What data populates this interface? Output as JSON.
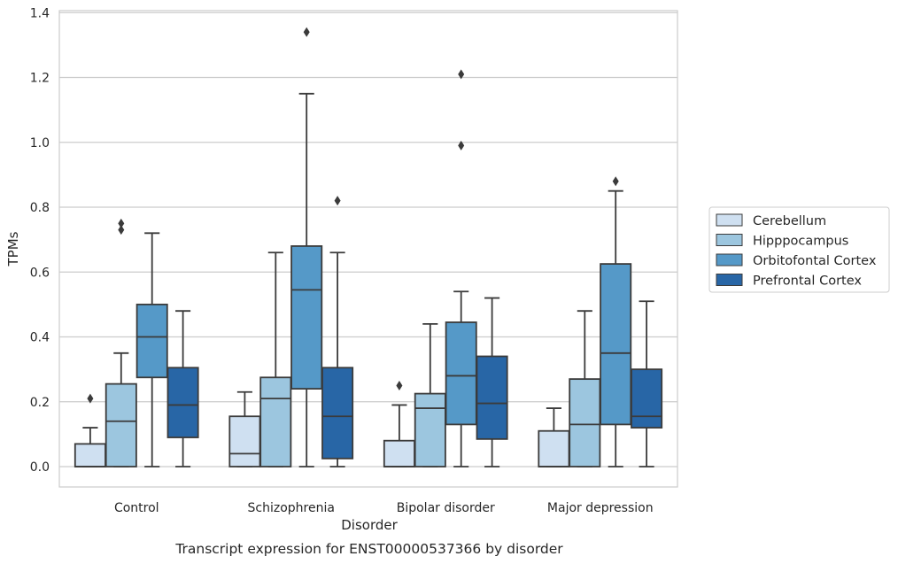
{
  "chart_data": {
    "type": "box",
    "title": "",
    "caption": "Transcript expression for ENST00000537366 by disorder",
    "xlabel": "Disorder",
    "ylabel": "TPMs",
    "ylim": [
      -0.06,
      1.41
    ],
    "yticks": [
      0.0,
      0.2,
      0.4,
      0.6,
      0.8,
      1.0,
      1.2,
      1.4
    ],
    "ytick_labels": [
      "0.0",
      "0.2",
      "0.4",
      "0.6",
      "0.8",
      "1.0",
      "1.2",
      "1.4"
    ],
    "grid": "horizontal",
    "legend_position": "right",
    "categories": [
      "Control",
      "Schizophrenia",
      "Bipolar disorder",
      "Major depression"
    ],
    "series": [
      {
        "name": "Cerebellum",
        "color": "#cfe0f1",
        "boxes": [
          {
            "whislo": 0.0,
            "q1": 0.0,
            "med": 0.0,
            "q3": 0.07,
            "whishi": 0.12,
            "fliers": [
              0.21
            ]
          },
          {
            "whislo": 0.0,
            "q1": 0.0,
            "med": 0.04,
            "q3": 0.155,
            "whishi": 0.23,
            "fliers": []
          },
          {
            "whislo": 0.0,
            "q1": 0.0,
            "med": 0.0,
            "q3": 0.08,
            "whishi": 0.19,
            "fliers": [
              0.25
            ]
          },
          {
            "whislo": 0.0,
            "q1": 0.0,
            "med": 0.0,
            "q3": 0.11,
            "whishi": 0.18,
            "fliers": []
          }
        ]
      },
      {
        "name": "Hipppocampus",
        "color": "#9cc6df",
        "boxes": [
          {
            "whislo": 0.0,
            "q1": 0.0,
            "med": 0.14,
            "q3": 0.255,
            "whishi": 0.35,
            "fliers": [
              0.73,
              0.75
            ]
          },
          {
            "whislo": 0.0,
            "q1": 0.0,
            "med": 0.21,
            "q3": 0.275,
            "whishi": 0.66,
            "fliers": []
          },
          {
            "whislo": 0.0,
            "q1": 0.0,
            "med": 0.18,
            "q3": 0.225,
            "whishi": 0.44,
            "fliers": []
          },
          {
            "whislo": 0.0,
            "q1": 0.0,
            "med": 0.13,
            "q3": 0.27,
            "whishi": 0.48,
            "fliers": []
          }
        ]
      },
      {
        "name": "Orbitofontal Cortex",
        "color": "#5599c8",
        "boxes": [
          {
            "whislo": 0.0,
            "q1": 0.275,
            "med": 0.4,
            "q3": 0.5,
            "whishi": 0.72,
            "fliers": []
          },
          {
            "whislo": 0.0,
            "q1": 0.24,
            "med": 0.545,
            "q3": 0.68,
            "whishi": 1.15,
            "fliers": [
              1.34
            ]
          },
          {
            "whislo": 0.0,
            "q1": 0.13,
            "med": 0.28,
            "q3": 0.445,
            "whishi": 0.54,
            "fliers": [
              0.99,
              1.21
            ]
          },
          {
            "whislo": 0.0,
            "q1": 0.13,
            "med": 0.35,
            "q3": 0.625,
            "whishi": 0.85,
            "fliers": [
              0.88
            ]
          }
        ]
      },
      {
        "name": "Prefrontal Cortex",
        "color": "#2866a6",
        "boxes": [
          {
            "whislo": 0.0,
            "q1": 0.09,
            "med": 0.19,
            "q3": 0.305,
            "whishi": 0.48,
            "fliers": []
          },
          {
            "whislo": 0.0,
            "q1": 0.025,
            "med": 0.155,
            "q3": 0.305,
            "whishi": 0.66,
            "fliers": [
              0.82
            ]
          },
          {
            "whislo": 0.0,
            "q1": 0.085,
            "med": 0.195,
            "q3": 0.34,
            "whishi": 0.52,
            "fliers": []
          },
          {
            "whislo": 0.0,
            "q1": 0.12,
            "med": 0.155,
            "q3": 0.3,
            "whishi": 0.51,
            "fliers": []
          }
        ]
      }
    ]
  }
}
